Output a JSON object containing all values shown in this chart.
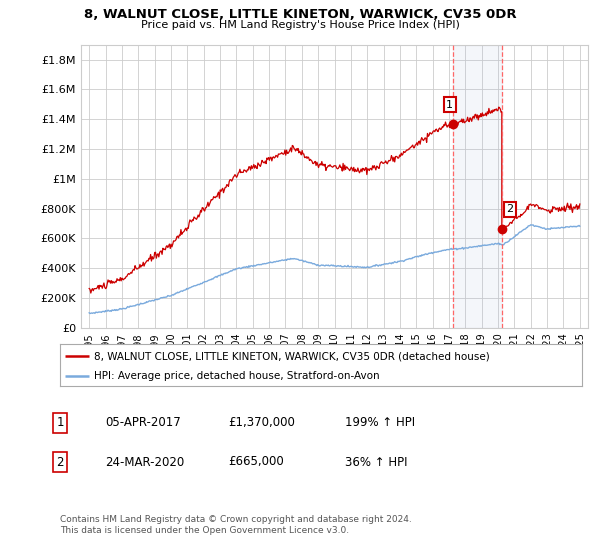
{
  "title": "8, WALNUT CLOSE, LITTLE KINETON, WARWICK, CV35 0DR",
  "subtitle": "Price paid vs. HM Land Registry's House Price Index (HPI)",
  "legend_line1": "8, WALNUT CLOSE, LITTLE KINETON, WARWICK, CV35 0DR (detached house)",
  "legend_line2": "HPI: Average price, detached house, Stratford-on-Avon",
  "annotation1_date": "05-APR-2017",
  "annotation1_price": "£1,370,000",
  "annotation1_hpi": "199% ↑ HPI",
  "annotation2_date": "24-MAR-2020",
  "annotation2_price": "£665,000",
  "annotation2_hpi": "36% ↑ HPI",
  "footnote": "Contains HM Land Registry data © Crown copyright and database right 2024.\nThis data is licensed under the Open Government Licence v3.0.",
  "red_line_color": "#cc0000",
  "blue_line_color": "#7aaadd",
  "background_color": "#ffffff",
  "grid_color": "#cccccc",
  "ylim": [
    0,
    1900000
  ],
  "yticks": [
    0,
    200000,
    400000,
    600000,
    800000,
    1000000,
    1200000,
    1400000,
    1600000,
    1800000
  ],
  "ytick_labels": [
    "£0",
    "£200K",
    "£400K",
    "£600K",
    "£800K",
    "£1M",
    "£1.2M",
    "£1.4M",
    "£1.6M",
    "£1.8M"
  ],
  "point1_x": 2017.25,
  "point1_y": 1370000,
  "point2_x": 2020.23,
  "point2_y": 665000,
  "vline1_x": 2017.25,
  "vline2_x": 2020.23,
  "xlim_start": 1994.5,
  "xlim_end": 2025.5,
  "red_seed": 10,
  "blue_seed": 7
}
